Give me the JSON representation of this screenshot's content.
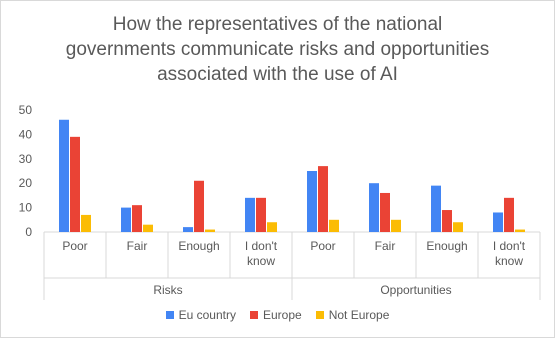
{
  "chart_data": {
    "type": "bar",
    "title": "How the representatives of the national governments communicate risks and opportunities associated with the use of AI",
    "groups": [
      {
        "label": "Risks",
        "categories": [
          "Poor",
          "Fair",
          "Enough",
          "I don't know"
        ]
      },
      {
        "label": "Opportunities",
        "categories": [
          "Poor",
          "Fair",
          "Enough",
          "I don't know"
        ]
      }
    ],
    "categories": [
      "Poor",
      "Fair",
      "Enough",
      "I don't know",
      "Poor",
      "Fair",
      "Enough",
      "I don't know"
    ],
    "series": [
      {
        "name": "Eu country",
        "color": "#4285f4",
        "values": [
          46,
          10,
          2,
          14,
          25,
          20,
          19,
          8
        ]
      },
      {
        "name": "Europe",
        "color": "#ea4335",
        "values": [
          39,
          11,
          21,
          14,
          27,
          16,
          9,
          14
        ]
      },
      {
        "name": "Not Europe",
        "color": "#fbbc04",
        "values": [
          7,
          3,
          1,
          4,
          5,
          5,
          4,
          1
        ]
      }
    ],
    "yticks": [
      0,
      10,
      20,
      30,
      40,
      50
    ],
    "ylim": [
      0,
      50
    ],
    "xlabel": "",
    "ylabel": "",
    "grid": false,
    "legend": "bottom"
  }
}
